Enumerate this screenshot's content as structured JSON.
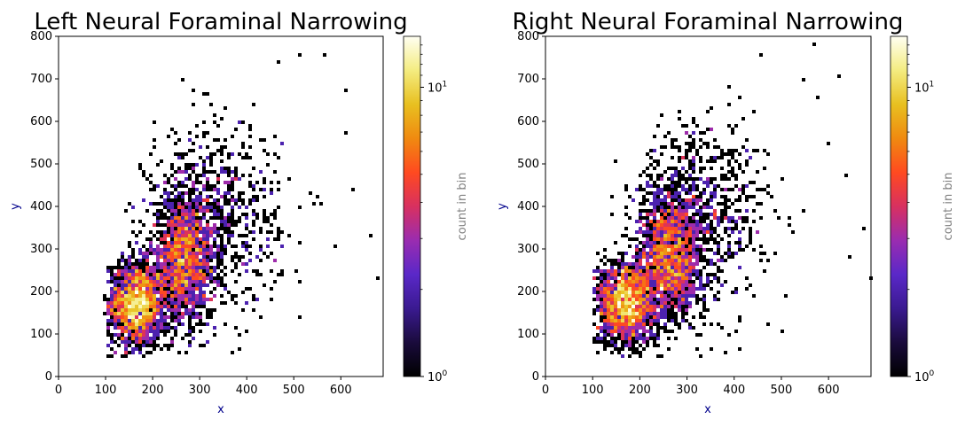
{
  "colors": {
    "axis_label": "#00008b",
    "colorbar_label": "#808080",
    "colormap": [
      "#000000",
      "#1a0b3c",
      "#3a1a90",
      "#5a28c8",
      "#9a2cb0",
      "#d83060",
      "#ff4a20",
      "#f08a10",
      "#e8c020",
      "#f4ec80",
      "#fffff2"
    ]
  },
  "chart_data": [
    {
      "type": "scatter",
      "title": "Left Neural Foraminal Narrowing",
      "xlabel": "x",
      "ylabel": "y",
      "xlim": [
        0,
        690
      ],
      "ylim": [
        0,
        800
      ],
      "xticks": [
        0,
        100,
        200,
        300,
        400,
        500,
        600
      ],
      "yticks": [
        0,
        100,
        200,
        300,
        400,
        500,
        600,
        700,
        800
      ],
      "grid": false,
      "colorbar": {
        "label": "count in bin",
        "scale": "log",
        "range": [
          1,
          15
        ],
        "ticks": [
          {
            "value": 1,
            "base": "10",
            "exp": "0"
          },
          {
            "value": 10,
            "base": "10",
            "exp": "1"
          }
        ]
      },
      "clusters": [
        {
          "center": [
            165,
            170
          ],
          "spread": [
            30,
            50
          ],
          "points": 1700
        },
        {
          "center": [
            265,
            270
          ],
          "spread": [
            35,
            75
          ],
          "points": 1500
        },
        {
          "center": [
            330,
            370
          ],
          "spread": [
            70,
            110
          ],
          "points": 800
        }
      ],
      "outliers": [
        [
          510,
          755
        ],
        [
          565,
          755
        ],
        [
          465,
          740
        ],
        [
          610,
          672
        ],
        [
          612,
          570
        ],
        [
          625,
          440
        ],
        [
          660,
          335
        ],
        [
          675,
          230
        ],
        [
          590,
          310
        ],
        [
          550,
          420
        ]
      ]
    },
    {
      "type": "scatter",
      "title": "Right Neural Foraminal Narrowing",
      "xlabel": "x",
      "ylabel": "y",
      "xlim": [
        0,
        690
      ],
      "ylim": [
        0,
        800
      ],
      "xticks": [
        0,
        100,
        200,
        300,
        400,
        500,
        600
      ],
      "yticks": [
        0,
        100,
        200,
        300,
        400,
        500,
        600,
        700,
        800
      ],
      "grid": false,
      "colorbar": {
        "label": "count in bin",
        "scale": "log",
        "range": [
          1,
          15
        ],
        "ticks": [
          {
            "value": 1,
            "base": "10",
            "exp": "0"
          },
          {
            "value": 10,
            "base": "10",
            "exp": "1"
          }
        ]
      },
      "clusters": [
        {
          "center": [
            170,
            175
          ],
          "spread": [
            32,
            50
          ],
          "points": 1700
        },
        {
          "center": [
            265,
            280
          ],
          "spread": [
            32,
            75
          ],
          "points": 1500
        },
        {
          "center": [
            330,
            380
          ],
          "spread": [
            70,
            110
          ],
          "points": 800
        }
      ],
      "outliers": [
        [
          570,
          778
        ],
        [
          460,
          758
        ],
        [
          620,
          708
        ],
        [
          640,
          475
        ],
        [
          645,
          285
        ],
        [
          688,
          232
        ],
        [
          675,
          345
        ],
        [
          600,
          550
        ],
        [
          575,
          660
        ],
        [
          545,
          700
        ]
      ]
    }
  ]
}
